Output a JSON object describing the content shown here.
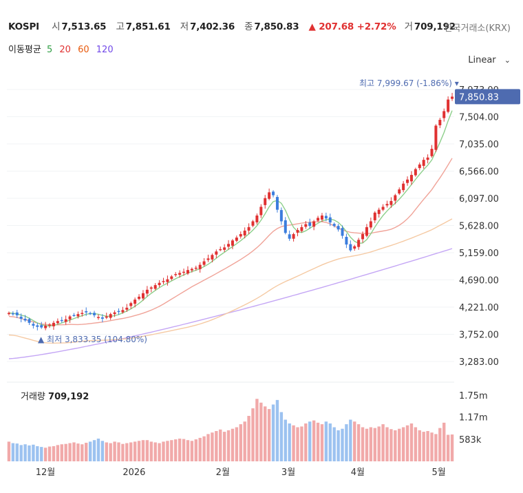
{
  "header": {
    "symbol": "KOSPI",
    "open_label": "시",
    "open": "7,513.65",
    "high_label": "고",
    "high": "7,851.61",
    "low_label": "저",
    "low": "7,402.36",
    "close_label": "종",
    "close": "7,850.83",
    "change": "▲ 207.68 +2.72%",
    "volume_label": "거",
    "volume": "709,192",
    "source": "한국거래소(KRX)"
  },
  "ma_legend": {
    "label": "이동평균",
    "ma5": "5",
    "ma20": "20",
    "ma60": "60",
    "ma120": "120"
  },
  "scale_selector": {
    "value": "Linear"
  },
  "volume_panel": {
    "label": "거래량",
    "value": "709,192"
  },
  "chart_data": {
    "type": "candlestick",
    "x_tick_labels": [
      "12월",
      "2026",
      "2월",
      "3월",
      "4월",
      "5월"
    ],
    "y_ticks": [
      3283,
      3752,
      4221,
      4690,
      5159,
      5628,
      6097,
      6566,
      7035,
      7504,
      7973
    ],
    "y_tick_labels": [
      "3,283.00",
      "3,752.00",
      "4,221.00",
      "4,690.00",
      "5,159.00",
      "5,628.00",
      "6,097.00",
      "6,566.00",
      "7,035.00",
      "7,504.00",
      "7,973.00"
    ],
    "ylim": [
      3283,
      7973
    ],
    "last_price_label": "7,850.83",
    "high_annotation": "최고 7,999.67 (-1.86%)",
    "low_annotation": "최저 3,833.35 (104.80%)",
    "close_series_approx": [
      4120,
      4110,
      4080,
      4020,
      3990,
      3950,
      3900,
      3880,
      3870,
      3900,
      3920,
      3950,
      3980,
      3990,
      4010,
      4060,
      4080,
      4100,
      4120,
      4130,
      4110,
      4080,
      4050,
      4020,
      4060,
      4100,
      4130,
      4150,
      4170,
      4210,
      4290,
      4350,
      4400,
      4460,
      4520,
      4560,
      4600,
      4640,
      4670,
      4700,
      4750,
      4790,
      4810,
      4830,
      4860,
      4880,
      4900,
      4950,
      5010,
      5060,
      5120,
      5180,
      5220,
      5250,
      5310,
      5370,
      5420,
      5480,
      5540,
      5600,
      5700,
      5800,
      5950,
      6100,
      6200,
      6150,
      5900,
      5700,
      5500,
      5400,
      5480,
      5550,
      5600,
      5650,
      5620,
      5700,
      5760,
      5800,
      5750,
      5680,
      5620,
      5560,
      5450,
      5300,
      5200,
      5270,
      5380,
      5480,
      5600,
      5700,
      5850,
      5900,
      5950,
      6000,
      6050,
      6150,
      6250,
      6350,
      6420,
      6500,
      6600,
      6680,
      6760,
      6800,
      6950,
      7350,
      7450,
      7600,
      7800,
      7850
    ],
    "volume_axis_labels": [
      "1.75m",
      "1.17m",
      "583k"
    ],
    "volume_max": 2000000,
    "volume_series_approx": [
      520,
      480,
      470,
      430,
      450,
      420,
      440,
      400,
      380,
      360,
      390,
      400,
      430,
      450,
      460,
      480,
      500,
      470,
      450,
      490,
      520,
      560,
      600,
      540,
      500,
      480,
      520,
      500,
      460,
      480,
      500,
      520,
      540,
      560,
      560,
      520,
      500,
      480,
      520,
      540,
      560,
      580,
      600,
      590,
      560,
      540,
      580,
      620,
      660,
      720,
      760,
      800,
      840,
      780,
      820,
      860,
      900,
      980,
      1050,
      1200,
      1400,
      1650,
      1550,
      1450,
      1380,
      1500,
      1620,
      1300,
      1100,
      1000,
      950,
      900,
      920,
      1000,
      1050,
      1080,
      1020,
      980,
      1050,
      1000,
      900,
      820,
      860,
      980,
      1100,
      1050,
      980,
      900,
      860,
      900,
      880,
      920,
      980,
      900,
      850,
      820,
      860,
      900,
      950,
      1000,
      900,
      820,
      780,
      800,
      760,
      720,
      880,
      1020,
      700,
      709
    ],
    "series": [
      {
        "name": "5",
        "color": "#2f9e44"
      },
      {
        "name": "20",
        "color": "#e8590c"
      },
      {
        "name": "60",
        "color": "#f08c00"
      },
      {
        "name": "120",
        "color": "#7048e8"
      }
    ]
  },
  "colors": {
    "up": "#e03131",
    "down": "#3b7ddd",
    "ma5": "#8ccf8a",
    "ma20": "#f0a398",
    "ma60": "#f5c9a2",
    "ma120": "#c4a6f5",
    "price_tag": "#4e6bb0"
  }
}
